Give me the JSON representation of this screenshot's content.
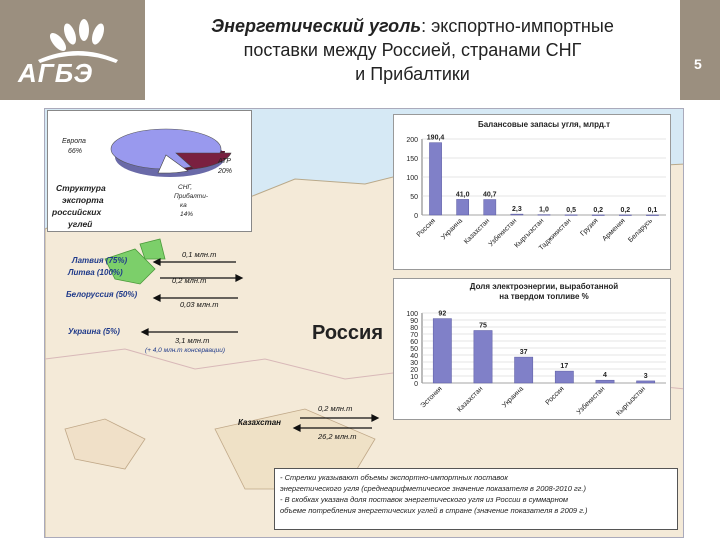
{
  "header": {
    "title_italic": "Энергетический уголь",
    "title_rest": ": экспортно-импортные",
    "title_line2": "поставки между Россией, странами СНГ",
    "title_line3": "и Прибалтики",
    "logo_text": "АГБЭ",
    "page_number": "5"
  },
  "pie": {
    "slices": [
      {
        "label": "Европа 66%",
        "value": 66,
        "color": "#9999ee"
      },
      {
        "label": "АТР 20%",
        "value": 20,
        "color": "#7a2040"
      },
      {
        "label": "СНГ, Прибалтика 14%",
        "value": 14,
        "color": "#ffffff"
      }
    ],
    "caption": "Структура экспорта российских углей"
  },
  "flows": {
    "latvia": "Латвия (75%)",
    "lithuania": "Литва (100%)",
    "flow1": "0,1 млн.т",
    "flow2": "0,2 млн.т",
    "belarus": "Белоруссия (50%)",
    "flow3": "0,03 млн.т",
    "ukraine": "Украина (5%)",
    "flow4": "3,1 млн.т",
    "flow4_note": "(+ 4,0 млн.т консервации)",
    "kazakhstan": "Казахстан",
    "flow5": "0,2 млн.т",
    "flow6": "26,2 млн.т",
    "russia": "Россия"
  },
  "chart_data": [
    {
      "type": "bar",
      "title": "Балансовые запасы угля, млрд.т",
      "categories": [
        "Россия",
        "Украина",
        "Казахстан",
        "Узбекистан",
        "Кыргызстан",
        "Таджикистан",
        "Грузия",
        "Армения",
        "Беларусь"
      ],
      "values": [
        190.4,
        41.0,
        40.7,
        2.3,
        1.0,
        0.5,
        0.2,
        0.2,
        0.1
      ],
      "value_labels": [
        "190,4",
        "41,0",
        "40,7",
        "2,3",
        "1,0",
        "0,5",
        "0,2",
        "0,2",
        "0,1"
      ],
      "ylim": [
        0,
        200
      ],
      "yticks": [
        0,
        50,
        100,
        150,
        200
      ],
      "color": "#8080c8"
    },
    {
      "type": "bar",
      "title": "Доля электроэнергии, выработанной на твердом топливе %",
      "categories": [
        "Эстония",
        "Казахстан",
        "Украина",
        "Россия",
        "Узбекистан",
        "Кыргызстан"
      ],
      "values": [
        92,
        75,
        37,
        17,
        4,
        3
      ],
      "value_labels": [
        "92",
        "75",
        "37",
        "17",
        "4",
        "3"
      ],
      "ylim": [
        0,
        100
      ],
      "yticks": [
        0,
        10,
        20,
        30,
        40,
        50,
        60,
        70,
        80,
        90,
        100
      ],
      "color": "#8080c8"
    }
  ],
  "note": {
    "line1": "- Стрелки указывают объемы экспортно-импортных поставок",
    "line2": "энергетического угля (среднеарифметическое значение показателя в 2008-2010 гг.)",
    "line3": "- В скобках указана доля поставок энергетического угля из России в суммарном",
    "line4": "объеме потребления энергетических углей в стране (значение показателя в 2009 г.)"
  }
}
